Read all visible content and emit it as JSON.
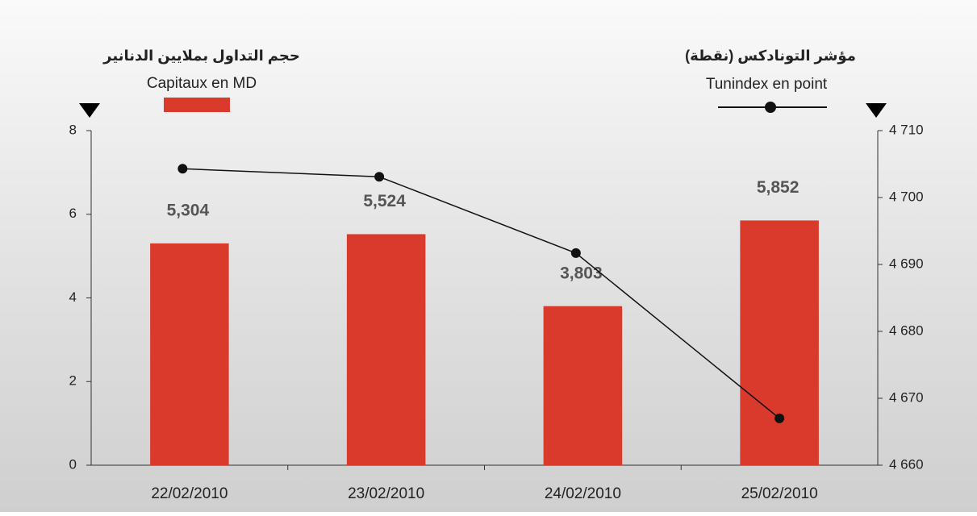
{
  "chart_data": {
    "type": "bar",
    "titles": [
      "حجم التداول بملايين الدنانير",
      "مؤشر التونادكس (نقطة)"
    ],
    "categories": [
      "22/02/2010",
      "23/02/2010",
      "24/02/2010",
      "25/02/2010"
    ],
    "series": [
      {
        "name": "Capitaux en MD",
        "type": "bar",
        "color": "#d93a2b",
        "values": [
          5.304,
          5.524,
          3.803,
          5.852
        ],
        "value_labels": [
          "5,304",
          "5,524",
          "3,803",
          "5,852"
        ]
      },
      {
        "name": "Tunindex en point",
        "type": "line",
        "axis": "y2",
        "color": "#111111",
        "values": [
          4704.3,
          4703.1,
          4691.7,
          4667.0
        ]
      }
    ],
    "ylim": [
      0,
      8
    ],
    "yticks": [
      0,
      2,
      4,
      6,
      8
    ],
    "y2lim": [
      4660,
      4710
    ],
    "y2ticks": [
      {
        "value": 4660,
        "label": "4 660"
      },
      {
        "value": 4670,
        "label": "4 670"
      },
      {
        "value": 4680,
        "label": "4 680"
      },
      {
        "value": 4690,
        "label": "4 690"
      },
      {
        "value": 4700,
        "label": "4 700"
      },
      {
        "value": 4710,
        "label": "4 710"
      }
    ]
  }
}
